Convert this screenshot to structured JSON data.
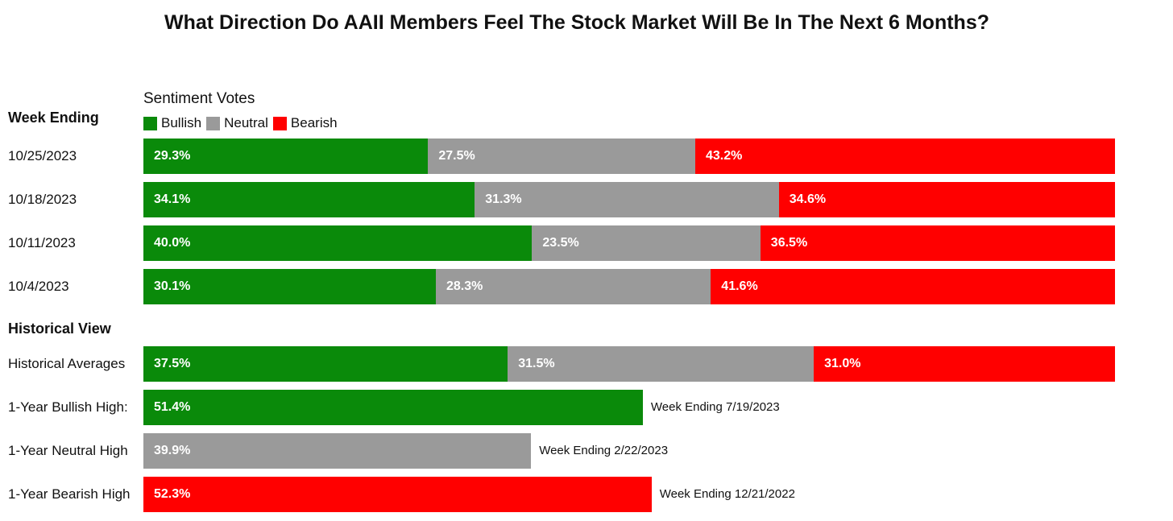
{
  "chart_data": {
    "type": "bar",
    "orientation": "horizontal",
    "stacked": true,
    "title": "What Direction Do AAII Members Feel The Stock Market Will Be In The Next 6 Months?",
    "legend_title": "Sentiment Votes",
    "legend_placement": "top-left",
    "grid": false,
    "xlim": [
      0,
      100
    ],
    "series": [
      {
        "name": "Bullish",
        "color": "#0a8a0a"
      },
      {
        "name": "Neutral",
        "color": "#9a9a9a"
      },
      {
        "name": "Bearish",
        "color": "#ff0000"
      }
    ],
    "sections": [
      {
        "label": "Week Ending",
        "rows": [
          {
            "category": "10/25/2023",
            "segments": [
              {
                "series": "bullish",
                "value": 29.3,
                "label": "29.3%"
              },
              {
                "series": "neutral",
                "value": 27.5,
                "label": "27.5%"
              },
              {
                "series": "bearish",
                "value": 43.2,
                "label": "43.2%"
              }
            ]
          },
          {
            "category": "10/18/2023",
            "segments": [
              {
                "series": "bullish",
                "value": 34.1,
                "label": "34.1%"
              },
              {
                "series": "neutral",
                "value": 31.3,
                "label": "31.3%"
              },
              {
                "series": "bearish",
                "value": 34.6,
                "label": "34.6%"
              }
            ]
          },
          {
            "category": "10/11/2023",
            "segments": [
              {
                "series": "bullish",
                "value": 40.0,
                "label": "40.0%"
              },
              {
                "series": "neutral",
                "value": 23.5,
                "label": "23.5%"
              },
              {
                "series": "bearish",
                "value": 36.5,
                "label": "36.5%"
              }
            ]
          },
          {
            "category": "10/4/2023",
            "segments": [
              {
                "series": "bullish",
                "value": 30.1,
                "label": "30.1%"
              },
              {
                "series": "neutral",
                "value": 28.3,
                "label": "28.3%"
              },
              {
                "series": "bearish",
                "value": 41.6,
                "label": "41.6%"
              }
            ]
          }
        ]
      },
      {
        "label": "Historical View",
        "rows": [
          {
            "category": "Historical Averages",
            "segments": [
              {
                "series": "bullish",
                "value": 37.5,
                "label": "37.5%"
              },
              {
                "series": "neutral",
                "value": 31.5,
                "label": "31.5%"
              },
              {
                "series": "bearish",
                "value": 31.0,
                "label": "31.0%"
              }
            ]
          },
          {
            "category": "1-Year Bullish High:",
            "segments": [
              {
                "series": "bullish",
                "value": 51.4,
                "label": "51.4%"
              }
            ],
            "note": "Week Ending 7/19/2023"
          },
          {
            "category": "1-Year Neutral High",
            "segments": [
              {
                "series": "neutral",
                "value": 39.9,
                "label": "39.9%"
              }
            ],
            "note": "Week Ending 2/22/2023"
          },
          {
            "category": "1-Year Bearish High",
            "segments": [
              {
                "series": "bearish",
                "value": 52.3,
                "label": "52.3%"
              }
            ],
            "note": "Week Ending 12/21/2022"
          }
        ]
      }
    ]
  }
}
